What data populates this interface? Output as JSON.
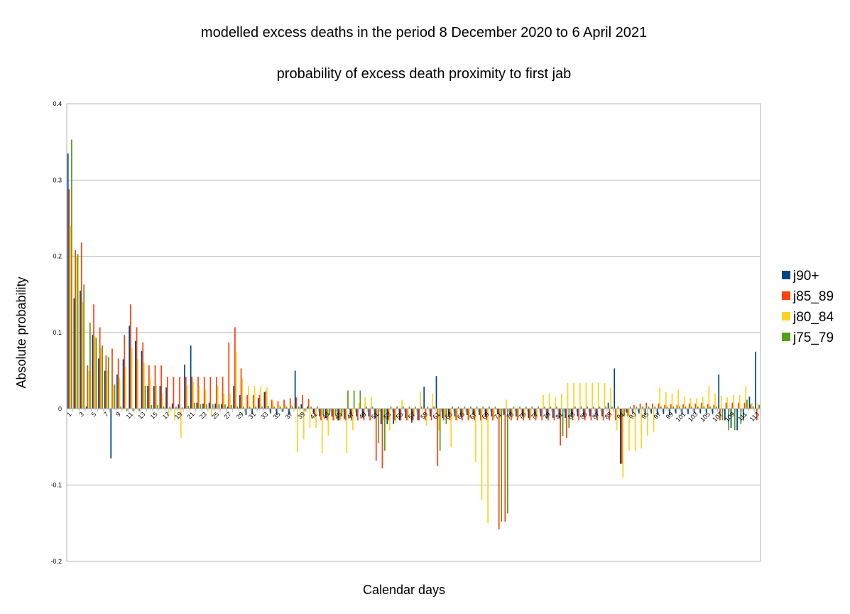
{
  "chart_data": {
    "type": "bar",
    "title": "modelled excess deaths in the period 8 December 2020 to 6 April 2021",
    "subtitle": "probability of excess death proximity to first jab",
    "xlabel": "Calendar days",
    "ylabel": "Absolute probability",
    "ylim": [
      -0.2,
      0.4
    ],
    "yticks": [
      -0.2,
      -0.1,
      0,
      0.1,
      0.2,
      0.3,
      0.4
    ],
    "ytick_labels": [
      "-0.2",
      "-0.1",
      "0",
      "0.1",
      "0.2",
      "0.3",
      "0.4"
    ],
    "grid": true,
    "legend_position": "right",
    "categories": [
      1,
      2,
      3,
      4,
      5,
      6,
      7,
      8,
      9,
      10,
      11,
      12,
      13,
      14,
      15,
      16,
      17,
      18,
      19,
      20,
      21,
      22,
      23,
      24,
      25,
      26,
      27,
      28,
      29,
      30,
      31,
      32,
      33,
      34,
      35,
      36,
      37,
      38,
      39,
      40,
      41,
      42,
      43,
      44,
      45,
      46,
      47,
      48,
      49,
      50,
      51,
      52,
      53,
      54,
      55,
      56,
      57,
      58,
      59,
      60,
      61,
      62,
      63,
      64,
      65,
      66,
      67,
      68,
      69,
      70,
      71,
      72,
      73,
      74,
      75,
      76,
      77,
      78,
      79,
      80,
      81,
      82,
      83,
      84,
      85,
      86,
      87,
      88,
      89,
      90,
      91,
      92,
      93,
      94,
      95,
      96,
      97,
      98,
      99,
      100,
      101,
      102,
      103,
      104,
      105,
      106,
      107,
      108,
      109,
      110,
      111,
      112,
      113
    ],
    "xtick_labels": [
      "1",
      "3",
      "5",
      "7",
      "9",
      "11",
      "13",
      "15",
      "17",
      "19",
      "21",
      "23",
      "25",
      "27",
      "29",
      "31",
      "33",
      "35",
      "37",
      "39",
      "41",
      "43",
      "45",
      "47",
      "49",
      "51",
      "53",
      "55",
      "57",
      "59",
      "61",
      "63",
      "65",
      "67",
      "69",
      "71",
      "73",
      "75",
      "77",
      "79",
      "81",
      "83",
      "85",
      "87",
      "89",
      "91",
      "93",
      "95",
      "97",
      "99",
      "101",
      "103",
      "105",
      "107",
      "109",
      "111",
      "113"
    ],
    "series": [
      {
        "name": "j90+",
        "color": "#004586",
        "values": [
          0.335,
          0.145,
          0.155,
          0.003,
          0.097,
          0.066,
          0.05,
          -0.065,
          0.045,
          0.065,
          0.109,
          0.089,
          0.076,
          0.03,
          0.03,
          0.03,
          0.028,
          0.007,
          0.006,
          0.058,
          0.083,
          0.008,
          0.007,
          0.008,
          0.007,
          0.006,
          0.003,
          0.03,
          0.018,
          -0.008,
          -0.007,
          0.014,
          0.022,
          -0.006,
          -0.007,
          -0.004,
          -0.008,
          0.05,
          0.006,
          0.003,
          -0.005,
          -0.01,
          -0.012,
          -0.01,
          -0.015,
          -0.013,
          -0.01,
          -0.01,
          -0.01,
          -0.01,
          -0.012,
          -0.02,
          -0.02,
          -0.02,
          -0.015,
          -0.012,
          -0.018,
          -0.015,
          0.029,
          -0.01,
          0.043,
          -0.012,
          -0.01,
          -0.01,
          -0.01,
          -0.008,
          -0.008,
          -0.008,
          -0.01,
          -0.01,
          -0.007,
          -0.008,
          -0.01,
          -0.01,
          -0.01,
          -0.012,
          -0.01,
          -0.01,
          -0.012,
          -0.012,
          -0.012,
          -0.012,
          -0.01,
          -0.01,
          -0.01,
          -0.01,
          -0.01,
          -0.01,
          0.008,
          0.053,
          -0.072,
          -0.005,
          -0.005,
          -0.006,
          -0.008,
          -0.006,
          -0.008,
          -0.007,
          -0.008,
          -0.006,
          -0.008,
          -0.007,
          -0.005,
          -0.006,
          -0.005,
          -0.007,
          0.045,
          -0.015,
          -0.025,
          -0.028,
          -0.015,
          0.016,
          0.075
        ]
      },
      {
        "name": "j85_89",
        "color": "#ff420e",
        "values": [
          0.288,
          0.208,
          0.218,
          0.057,
          0.137,
          0.107,
          0.07,
          0.079,
          0.066,
          0.097,
          0.137,
          0.107,
          0.087,
          0.057,
          0.057,
          0.057,
          0.042,
          0.042,
          0.042,
          0.042,
          0.042,
          0.042,
          0.042,
          0.042,
          0.042,
          0.042,
          0.087,
          0.107,
          0.053,
          0.018,
          0.018,
          0.018,
          0.023,
          0.012,
          0.01,
          0.012,
          0.014,
          0.015,
          0.018,
          0.013,
          -0.01,
          -0.015,
          -0.015,
          -0.015,
          -0.015,
          -0.015,
          -0.015,
          -0.015,
          -0.015,
          -0.015,
          -0.068,
          -0.078,
          -0.015,
          -0.015,
          -0.015,
          -0.015,
          -0.015,
          -0.015,
          -0.015,
          -0.015,
          -0.075,
          -0.015,
          -0.015,
          -0.015,
          -0.015,
          -0.015,
          -0.015,
          -0.015,
          -0.015,
          -0.015,
          -0.158,
          -0.148,
          -0.015,
          -0.015,
          -0.015,
          -0.015,
          -0.015,
          -0.015,
          -0.015,
          -0.015,
          -0.048,
          -0.038,
          -0.015,
          -0.015,
          -0.015,
          -0.015,
          -0.015,
          -0.015,
          -0.015,
          -0.015,
          -0.072,
          -0.01,
          0.005,
          0.007,
          0.008,
          0.007,
          0.007,
          0.005,
          0.006,
          0.005,
          0.006,
          0.007,
          0.007,
          0.008,
          0.006,
          0.005,
          -0.015,
          0.008,
          0.008,
          0.008,
          0.008,
          0.006,
          -0.015
        ]
      },
      {
        "name": "j80_84",
        "color": "#ffd320",
        "values": [
          0.24,
          0.2,
          0.14,
          0.05,
          0.095,
          0.08,
          0.05,
          0.03,
          0.04,
          0.055,
          0.08,
          0.065,
          0.06,
          0.04,
          0.03,
          0.02,
          -0.01,
          -0.015,
          -0.038,
          0.03,
          0.035,
          0.03,
          0.025,
          -0.01,
          0.03,
          0.02,
          0.02,
          0.075,
          0.04,
          0.03,
          0.03,
          0.03,
          0.028,
          0.01,
          0.005,
          0.005,
          0.005,
          -0.057,
          -0.04,
          -0.025,
          -0.025,
          -0.058,
          -0.035,
          -0.015,
          -0.015,
          -0.058,
          -0.028,
          0.008,
          0.015,
          0.016,
          -0.01,
          -0.015,
          -0.028,
          -0.018,
          0.012,
          -0.015,
          -0.01,
          0.022,
          -0.022,
          0.02,
          -0.028,
          -0.01,
          -0.05,
          -0.015,
          -0.01,
          -0.012,
          -0.07,
          -0.12,
          -0.15,
          -0.012,
          -0.012,
          0.012,
          -0.012,
          -0.012,
          -0.012,
          -0.012,
          -0.012,
          0.018,
          0.02,
          0.015,
          0.02,
          0.034,
          0.034,
          0.034,
          0.034,
          0.034,
          0.034,
          0.034,
          0.028,
          -0.028,
          -0.09,
          -0.055,
          -0.055,
          -0.052,
          -0.035,
          -0.03,
          0.028,
          0.022,
          0.02,
          0.026,
          0.016,
          0.014,
          0.014,
          0.016,
          0.03,
          0.02,
          0.017,
          0.015,
          0.018,
          0.018,
          0.03,
          0.008,
          0.007
        ]
      },
      {
        "name": "j75_79",
        "color": "#579d1c",
        "values": [
          0.353,
          0.203,
          0.163,
          0.113,
          0.093,
          0.083,
          0.068,
          0.032,
          0.003,
          -0.003,
          -0.003,
          -0.003,
          0.03,
          0.005,
          0.005,
          0.003,
          0.003,
          0.003,
          0.002,
          0.004,
          0.008,
          0.006,
          0.006,
          0.006,
          0.006,
          0.006,
          0.005,
          0.003,
          0.003,
          0.003,
          0.003,
          0.003,
          0.004,
          0.003,
          0.003,
          0.003,
          0.003,
          0.003,
          -0.003,
          0.003,
          0.003,
          -0.008,
          -0.008,
          -0.008,
          -0.01,
          0.024,
          0.024,
          0.024,
          0.003,
          0.003,
          -0.045,
          -0.055,
          0.003,
          0.003,
          0.003,
          0.003,
          0.003,
          0.003,
          0.003,
          0.003,
          -0.055,
          -0.02,
          0.003,
          0.003,
          0.003,
          0.003,
          0.003,
          0.003,
          0.003,
          0.003,
          -0.148,
          -0.137,
          0.003,
          0.003,
          0.003,
          0.003,
          0.003,
          0.003,
          0.003,
          0.003,
          -0.036,
          -0.025,
          0.003,
          0.003,
          0.003,
          0.003,
          0.003,
          0.003,
          0.003,
          0.003,
          -0.01,
          0.003,
          0.003,
          0.003,
          0.003,
          0.003,
          0.003,
          0.003,
          0.003,
          0.003,
          0.003,
          0.003,
          0.003,
          0.003,
          0.003,
          0.003,
          -0.015,
          -0.028,
          -0.028,
          -0.02,
          0.012,
          0.003,
          0.005
        ]
      }
    ]
  }
}
